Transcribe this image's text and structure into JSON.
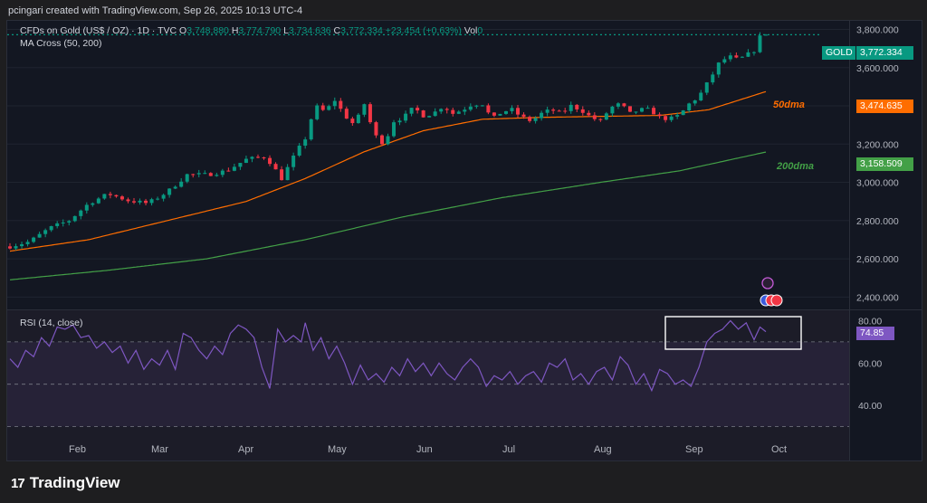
{
  "header": {
    "credit": "pcingari created with TradingView.com, Sep 26, 2025 10:13 UTC-4"
  },
  "legend": {
    "symbol": "CFDs on Gold (US$ / OZ) · 1D · TVC",
    "o_label": "O",
    "o": "3,748.880",
    "h_label": "H",
    "h": "3,774.790",
    "l_label": "L",
    "l": "3,734.636",
    "c_label": "C",
    "c": "3,772.334",
    "change": "+23.454 (+0.63%)",
    "vol_label": "Vol",
    "vol": "0",
    "ma": "MA Cross (50, 200)",
    "rsi": "RSI (14, close)"
  },
  "tags": {
    "gold_name": "GOLD",
    "gold_price": "3,772.334",
    "ma50_price": "3,474.635",
    "ma200_price": "3,158.509",
    "rsi_value": "74.85"
  },
  "labels": {
    "ma50": "50dma",
    "ma200": "200dma"
  },
  "footer": {
    "brand": "TradingView"
  },
  "colors": {
    "up": "#089981",
    "down": "#f23645",
    "ma50": "#ff6d00",
    "ma200": "#43a047",
    "rsi": "#7e57c2",
    "background": "#131722"
  },
  "chart_data": [
    {
      "type": "candlestick",
      "title": "CFDs on Gold (US$ / OZ) · 1D · TVC",
      "x_ticks": [
        "Feb",
        "Mar",
        "Apr",
        "May",
        "Jun",
        "Jul",
        "Aug",
        "Sep",
        "Oct"
      ],
      "y_ticks": [
        2400,
        2600,
        2800,
        3000,
        3200,
        3400,
        3600,
        3800
      ],
      "y_tick_labels": [
        "2,400.000",
        "2,600.000",
        "2,800.000",
        "3,000.000",
        "3,200.000",
        "3,400.000",
        "3,600.000",
        "3,800.000"
      ],
      "ylim": [
        2340,
        3845
      ],
      "last": {
        "open": 3748.88,
        "high": 3774.79,
        "low": 3734.636,
        "close": 3772.334
      },
      "close_anchors": [
        [
          0,
          2665
        ],
        [
          10,
          2690
        ],
        [
          20,
          2760
        ],
        [
          30,
          2800
        ],
        [
          40,
          2890
        ],
        [
          50,
          2940
        ],
        [
          60,
          2905
        ],
        [
          70,
          2890
        ],
        [
          80,
          2950
        ],
        [
          90,
          3040
        ],
        [
          100,
          3040
        ],
        [
          110,
          3060
        ],
        [
          120,
          3120
        ],
        [
          130,
          3135
        ],
        [
          138,
          3020
        ],
        [
          145,
          3150
        ],
        [
          150,
          3230
        ],
        [
          155,
          3400
        ],
        [
          160,
          3370
        ],
        [
          165,
          3430
        ],
        [
          170,
          3350
        ],
        [
          175,
          3300
        ],
        [
          180,
          3410
        ],
        [
          185,
          3250
        ],
        [
          190,
          3200
        ],
        [
          195,
          3320
        ],
        [
          200,
          3340
        ],
        [
          205,
          3390
        ],
        [
          210,
          3350
        ],
        [
          215,
          3360
        ],
        [
          220,
          3400
        ],
        [
          225,
          3360
        ],
        [
          230,
          3380
        ],
        [
          235,
          3410
        ],
        [
          240,
          3410
        ],
        [
          245,
          3330
        ],
        [
          250,
          3370
        ],
        [
          255,
          3380
        ],
        [
          260,
          3340
        ],
        [
          265,
          3320
        ],
        [
          270,
          3360
        ],
        [
          275,
          3380
        ],
        [
          280,
          3360
        ],
        [
          285,
          3400
        ],
        [
          290,
          3380
        ],
        [
          295,
          3340
        ],
        [
          300,
          3320
        ],
        [
          305,
          3390
        ],
        [
          310,
          3410
        ],
        [
          315,
          3360
        ],
        [
          320,
          3380
        ],
        [
          325,
          3380
        ],
        [
          330,
          3340
        ],
        [
          335,
          3330
        ],
        [
          340,
          3350
        ],
        [
          345,
          3410
        ],
        [
          350,
          3450
        ],
        [
          355,
          3530
        ],
        [
          360,
          3620
        ],
        [
          365,
          3660
        ],
        [
          370,
          3640
        ],
        [
          375,
          3670
        ],
        [
          378,
          3690
        ],
        [
          381,
          3760
        ],
        [
          384,
          3772.334
        ]
      ],
      "series": [
        {
          "name": "50dma",
          "last": 3474.635,
          "anchors": [
            [
              0,
              2640
            ],
            [
              40,
              2700
            ],
            [
              80,
              2800
            ],
            [
              120,
              2900
            ],
            [
              150,
              3020
            ],
            [
              180,
              3160
            ],
            [
              210,
              3270
            ],
            [
              240,
              3330
            ],
            [
              270,
              3340
            ],
            [
              300,
              3345
            ],
            [
              330,
              3350
            ],
            [
              355,
              3380
            ],
            [
              384,
              3474.635
            ]
          ]
        },
        {
          "name": "200dma",
          "last": 3158.509,
          "anchors": [
            [
              0,
              2490
            ],
            [
              50,
              2540
            ],
            [
              100,
              2600
            ],
            [
              150,
              2700
            ],
            [
              200,
              2820
            ],
            [
              250,
              2920
            ],
            [
              300,
              3000
            ],
            [
              340,
              3060
            ],
            [
              384,
              3158.509
            ]
          ]
        }
      ]
    },
    {
      "type": "line",
      "title": "RSI (14, close)",
      "y_ticks": [
        40,
        60,
        80
      ],
      "y_tick_labels": [
        "40.00",
        "60.00",
        "80.00"
      ],
      "bands": [
        30,
        50,
        70
      ],
      "ylim": [
        28.5,
        81.5
      ],
      "last": 74.85,
      "anchors": [
        [
          0,
          62
        ],
        [
          4,
          58
        ],
        [
          8,
          66
        ],
        [
          12,
          63
        ],
        [
          16,
          72
        ],
        [
          20,
          68
        ],
        [
          24,
          77
        ],
        [
          28,
          76
        ],
        [
          32,
          78
        ],
        [
          36,
          72
        ],
        [
          40,
          73
        ],
        [
          44,
          67
        ],
        [
          48,
          70
        ],
        [
          52,
          65
        ],
        [
          56,
          68
        ],
        [
          60,
          60
        ],
        [
          64,
          66
        ],
        [
          68,
          57
        ],
        [
          72,
          62
        ],
        [
          76,
          59
        ],
        [
          80,
          66
        ],
        [
          84,
          57
        ],
        [
          88,
          74
        ],
        [
          92,
          72
        ],
        [
          96,
          66
        ],
        [
          100,
          62
        ],
        [
          104,
          68
        ],
        [
          108,
          64
        ],
        [
          112,
          74
        ],
        [
          116,
          78
        ],
        [
          120,
          76
        ],
        [
          124,
          72
        ],
        [
          128,
          58
        ],
        [
          132,
          48
        ],
        [
          136,
          76
        ],
        [
          140,
          70
        ],
        [
          144,
          73
        ],
        [
          148,
          70
        ],
        [
          150,
          79
        ],
        [
          154,
          66
        ],
        [
          158,
          72
        ],
        [
          162,
          62
        ],
        [
          166,
          68
        ],
        [
          170,
          60
        ],
        [
          174,
          50
        ],
        [
          178,
          59
        ],
        [
          182,
          52
        ],
        [
          186,
          55
        ],
        [
          190,
          51
        ],
        [
          194,
          58
        ],
        [
          198,
          54
        ],
        [
          202,
          62
        ],
        [
          206,
          56
        ],
        [
          210,
          60
        ],
        [
          214,
          54
        ],
        [
          218,
          60
        ],
        [
          222,
          55
        ],
        [
          226,
          52
        ],
        [
          230,
          58
        ],
        [
          234,
          62
        ],
        [
          238,
          58
        ],
        [
          242,
          49
        ],
        [
          246,
          54
        ],
        [
          250,
          52
        ],
        [
          254,
          56
        ],
        [
          258,
          50
        ],
        [
          262,
          54
        ],
        [
          266,
          56
        ],
        [
          270,
          51
        ],
        [
          274,
          60
        ],
        [
          278,
          58
        ],
        [
          282,
          62
        ],
        [
          286,
          52
        ],
        [
          290,
          55
        ],
        [
          294,
          50
        ],
        [
          298,
          56
        ],
        [
          302,
          58
        ],
        [
          306,
          52
        ],
        [
          310,
          63
        ],
        [
          314,
          59
        ],
        [
          318,
          50
        ],
        [
          322,
          55
        ],
        [
          326,
          47
        ],
        [
          330,
          57
        ],
        [
          334,
          55
        ],
        [
          338,
          50
        ],
        [
          342,
          52
        ],
        [
          346,
          49
        ],
        [
          350,
          58
        ],
        [
          354,
          70
        ],
        [
          358,
          74
        ],
        [
          362,
          76
        ],
        [
          366,
          80
        ],
        [
          370,
          76
        ],
        [
          374,
          79
        ],
        [
          378,
          71
        ],
        [
          381,
          77
        ],
        [
          384,
          74.85
        ]
      ]
    }
  ]
}
